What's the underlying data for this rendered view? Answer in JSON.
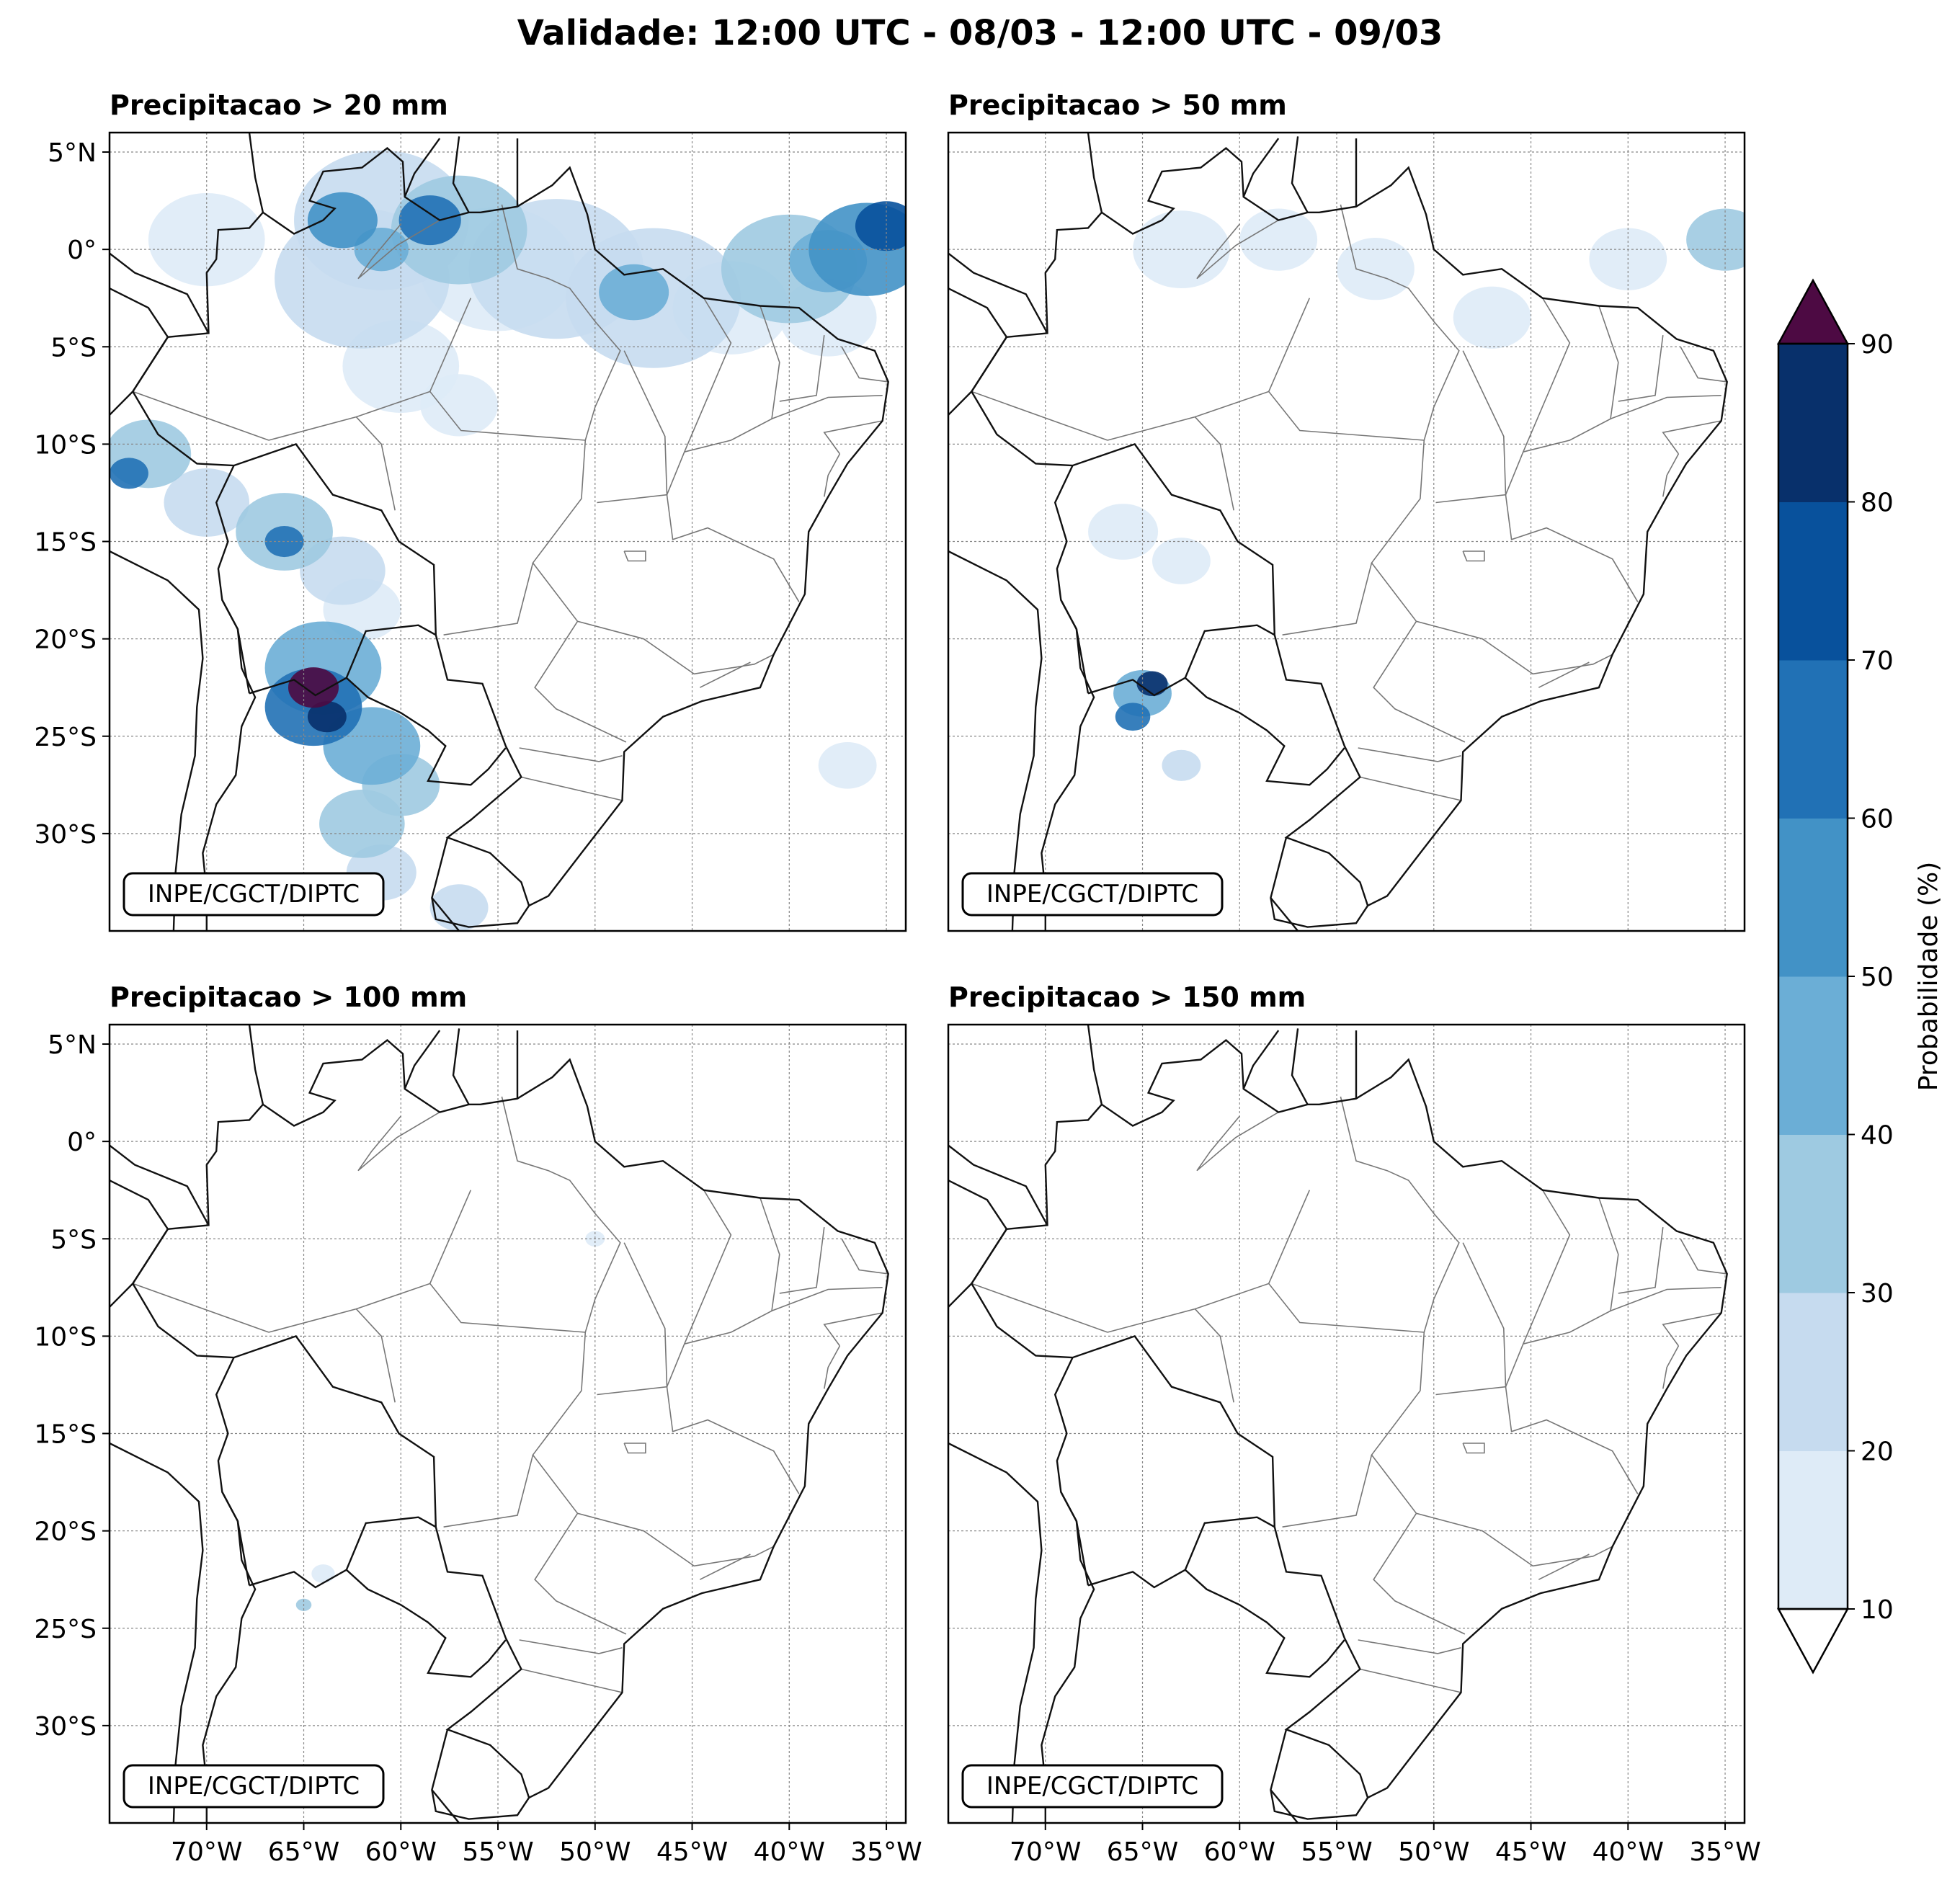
{
  "suptitle": "Validade: 12:00 UTC - 08/03 - 12:00 UTC - 09/03",
  "credit": "INPE/CGCT/DIPTC",
  "panels": [
    {
      "title": "Precipitacao > 20 mm",
      "threshold_mm": 20
    },
    {
      "title": "Precipitacao > 50 mm",
      "threshold_mm": 50
    },
    {
      "title": "Precipitacao > 100 mm",
      "threshold_mm": 100
    },
    {
      "title": "Precipitacao > 150 mm",
      "threshold_mm": 150
    }
  ],
  "lat_ticks": [
    "5°N",
    "0°",
    "5°S",
    "10°S",
    "15°S",
    "20°S",
    "25°S",
    "30°S"
  ],
  "lat_values": [
    5,
    0,
    -5,
    -10,
    -15,
    -20,
    -25,
    -30
  ],
  "lon_ticks": [
    "70°W",
    "65°W",
    "60°W",
    "55°W",
    "50°W",
    "45°W",
    "40°W",
    "35°W"
  ],
  "lon_values": [
    -70,
    -65,
    -60,
    -55,
    -50,
    -45,
    -40,
    -35
  ],
  "extent": {
    "lon_min": -75,
    "lon_max": -34,
    "lat_min": -35,
    "lat_max": 6
  },
  "colorbar": {
    "label": "Probabilidade (%)",
    "ticks": [
      "10",
      "20",
      "30",
      "40",
      "50",
      "60",
      "70",
      "80",
      "90"
    ],
    "levels": [
      10,
      20,
      30,
      40,
      50,
      60,
      70,
      80,
      90
    ],
    "colors": [
      "#deebf7",
      "#c6dbef",
      "#9ecae1",
      "#6baed6",
      "#4292c6",
      "#2171b5",
      "#08519c",
      "#08306b"
    ],
    "over_color": "#4d0a43",
    "under_color": "#ffffff"
  },
  "chart_data": {
    "type": "heatmap",
    "description_units": "probability (%) of 24h precipitation exceeding threshold, approximate blobs (lon, lat, radius_deg, prob)",
    "panels": [
      {
        "threshold_mm": 20,
        "blobs": [
          {
            "lon": -61,
            "lat": 1.5,
            "r": 4.5,
            "p": 25
          },
          {
            "lon": -57,
            "lat": 1.0,
            "r": 3.5,
            "p": 35
          },
          {
            "lon": -62,
            "lat": -1.5,
            "r": 4.5,
            "p": 20
          },
          {
            "lon": -55,
            "lat": -1.0,
            "r": 4.0,
            "p": 18
          },
          {
            "lon": -63,
            "lat": 1.5,
            "r": 1.8,
            "p": 58
          },
          {
            "lon": -58.5,
            "lat": 1.5,
            "r": 1.6,
            "p": 65
          },
          {
            "lon": -61,
            "lat": 0.0,
            "r": 1.4,
            "p": 45
          },
          {
            "lon": -52,
            "lat": -1.0,
            "r": 4.5,
            "p": 20
          },
          {
            "lon": -47,
            "lat": -2.5,
            "r": 4.5,
            "p": 22
          },
          {
            "lon": -48,
            "lat": -2.2,
            "r": 1.8,
            "p": 48
          },
          {
            "lon": -43,
            "lat": -3.0,
            "r": 3.0,
            "p": 18
          },
          {
            "lon": -40,
            "lat": -1.0,
            "r": 3.5,
            "p": 30
          },
          {
            "lon": -36,
            "lat": 0.0,
            "r": 3.0,
            "p": 55
          },
          {
            "lon": -35,
            "lat": 1.2,
            "r": 1.6,
            "p": 78
          },
          {
            "lon": -38,
            "lat": -0.6,
            "r": 2.0,
            "p": 42
          },
          {
            "lon": -38,
            "lat": -3.5,
            "r": 2.5,
            "p": 15
          },
          {
            "lon": -70,
            "lat": 0.5,
            "r": 3.0,
            "p": 15
          },
          {
            "lon": -60,
            "lat": -6.0,
            "r": 3.0,
            "p": 18
          },
          {
            "lon": -57,
            "lat": -8.0,
            "r": 2.0,
            "p": 15
          },
          {
            "lon": -73,
            "lat": -10.5,
            "r": 2.2,
            "p": 32
          },
          {
            "lon": -74,
            "lat": -11.5,
            "r": 1.0,
            "p": 62
          },
          {
            "lon": -70,
            "lat": -13.0,
            "r": 2.2,
            "p": 28
          },
          {
            "lon": -66,
            "lat": -14.5,
            "r": 2.5,
            "p": 30
          },
          {
            "lon": -66,
            "lat": -15.0,
            "r": 1.0,
            "p": 62
          },
          {
            "lon": -63,
            "lat": -16.5,
            "r": 2.2,
            "p": 25
          },
          {
            "lon": -62,
            "lat": -18.5,
            "r": 2.0,
            "p": 18
          },
          {
            "lon": -64,
            "lat": -21.5,
            "r": 3.0,
            "p": 45
          },
          {
            "lon": -64.5,
            "lat": -23.5,
            "r": 2.5,
            "p": 68
          },
          {
            "lon": -64.5,
            "lat": -22.5,
            "r": 1.3,
            "p": 92
          },
          {
            "lon": -63.8,
            "lat": -24.0,
            "r": 1.0,
            "p": 88
          },
          {
            "lon": -61.5,
            "lat": -25.5,
            "r": 2.5,
            "p": 48
          },
          {
            "lon": -60,
            "lat": -27.5,
            "r": 2.0,
            "p": 38
          },
          {
            "lon": -62,
            "lat": -29.5,
            "r": 2.2,
            "p": 35
          },
          {
            "lon": -61,
            "lat": -32.0,
            "r": 1.8,
            "p": 28
          },
          {
            "lon": -57,
            "lat": -33.8,
            "r": 1.5,
            "p": 20
          },
          {
            "lon": -37,
            "lat": -26.5,
            "r": 1.5,
            "p": 15
          }
        ]
      },
      {
        "threshold_mm": 50,
        "blobs": [
          {
            "lon": -63,
            "lat": 0.0,
            "r": 2.5,
            "p": 15
          },
          {
            "lon": -58,
            "lat": 0.5,
            "r": 2.0,
            "p": 15
          },
          {
            "lon": -53,
            "lat": -1.0,
            "r": 2.0,
            "p": 12
          },
          {
            "lon": -47,
            "lat": -3.5,
            "r": 2.0,
            "p": 14
          },
          {
            "lon": -40,
            "lat": -0.5,
            "r": 2.0,
            "p": 15
          },
          {
            "lon": -35,
            "lat": 0.5,
            "r": 2.0,
            "p": 30
          },
          {
            "lon": -66,
            "lat": -14.5,
            "r": 1.8,
            "p": 15
          },
          {
            "lon": -63,
            "lat": -16.0,
            "r": 1.5,
            "p": 12
          },
          {
            "lon": -65,
            "lat": -22.8,
            "r": 1.5,
            "p": 40
          },
          {
            "lon": -64.5,
            "lat": -22.3,
            "r": 0.8,
            "p": 88
          },
          {
            "lon": -65.5,
            "lat": -24.0,
            "r": 0.9,
            "p": 60
          },
          {
            "lon": -63,
            "lat": -26.5,
            "r": 1.0,
            "p": 25
          }
        ]
      },
      {
        "threshold_mm": 100,
        "blobs": [
          {
            "lon": -65,
            "lat": -23.8,
            "r": 0.4,
            "p": 35
          },
          {
            "lon": -64,
            "lat": -22.2,
            "r": 0.6,
            "p": 15
          },
          {
            "lon": -50,
            "lat": -5.0,
            "r": 0.5,
            "p": 12
          }
        ]
      },
      {
        "threshold_mm": 150,
        "blobs": []
      }
    ]
  }
}
